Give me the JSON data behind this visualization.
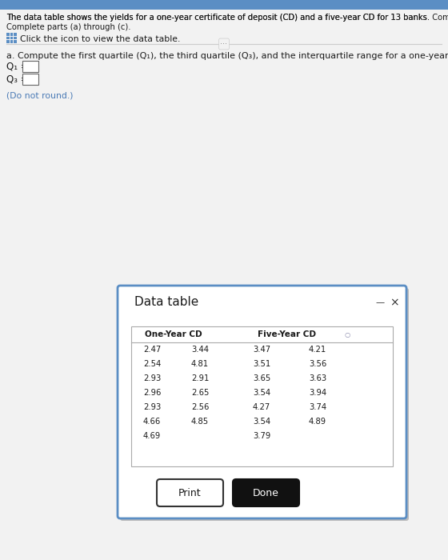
{
  "title_text": "The data table shows the yields for a one-year certificate of deposit (CD) and a five-year CD for 13 banks. Complete parts (a) through (c).",
  "click_icon_text": "Click the icon to view the data table.",
  "part_a_text": "a. Compute the first quartile (Q₁), the third quartile (Q₃), and the interquartile range for a one-year CD.",
  "q1_label": "Q₁ =",
  "q3_label": "Q₃ =",
  "do_not_round": "(Do not round.)",
  "dialog_title": "Data table",
  "col1_header": "One-Year CD",
  "col2_header": "Five-Year CD",
  "one_year_col1": [
    2.47,
    2.54,
    2.93,
    2.96,
    2.93,
    4.66,
    4.69
  ],
  "one_year_col2": [
    3.44,
    4.81,
    2.91,
    2.65,
    2.56,
    4.85,
    null
  ],
  "five_year_col1": [
    3.47,
    3.51,
    3.65,
    3.54,
    4.27,
    3.54,
    3.79
  ],
  "five_year_col2": [
    4.21,
    3.56,
    3.63,
    3.94,
    3.74,
    4.89,
    null
  ],
  "bg_color": "#f0f0f0",
  "dialog_bg": "#ffffff",
  "dialog_border": "#5b8ec4",
  "top_bar_color": "#5b8ec4",
  "text_color": "#1a1a1a",
  "blue_link_color": "#4a7ab5"
}
